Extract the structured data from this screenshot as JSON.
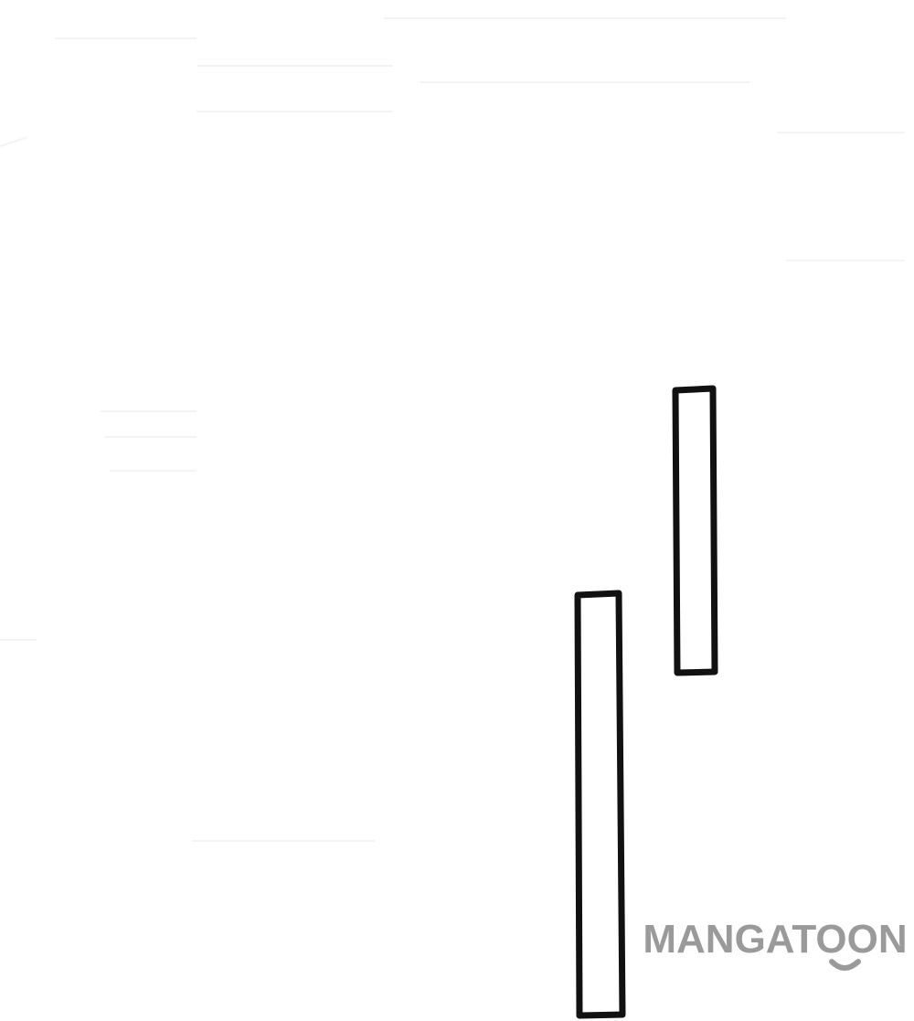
{
  "watermark": {
    "text": "MANGATOON",
    "color": "#9a9a9a"
  },
  "artwork": {
    "background": "#ffffff",
    "stroke_color": "#111111",
    "shapes": [
      "vertical-bar-outline",
      "vertical-bar-outline"
    ]
  }
}
